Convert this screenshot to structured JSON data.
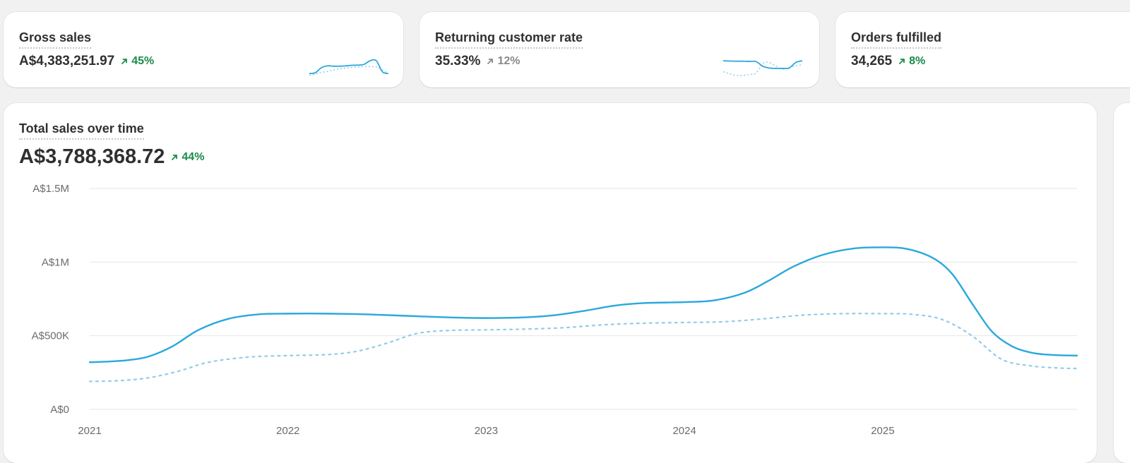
{
  "metrics": [
    {
      "title": "Gross sales",
      "value": "A$4,383,251.97",
      "delta": "45%",
      "trend": "up",
      "sparkline": {
        "current": [
          0.3,
          0.35,
          0.62,
          0.72,
          0.7,
          0.7,
          0.72,
          0.75,
          0.76,
          0.8,
          1.0,
          1.0,
          0.4,
          0.3
        ],
        "previous": [
          0.2,
          0.28,
          0.35,
          0.42,
          0.5,
          0.56,
          0.6,
          0.64,
          0.66,
          0.68,
          0.68,
          0.66,
          0.5,
          0.3
        ]
      }
    },
    {
      "title": "Returning customer rate",
      "value": "35.33%",
      "delta": "12%",
      "trend": "neutral",
      "sparkline": {
        "current": [
          1.0,
          0.98,
          0.97,
          0.97,
          0.96,
          0.95,
          0.7,
          0.6,
          0.58,
          0.58,
          0.6,
          0.9,
          1.0
        ],
        "previous": [
          0.4,
          0.28,
          0.2,
          0.2,
          0.25,
          0.32,
          0.85,
          0.9,
          0.7,
          0.55,
          0.62,
          0.72,
          0.78
        ]
      }
    },
    {
      "title": "Orders fulfilled",
      "value": "34,265",
      "delta": "8%",
      "trend": "up",
      "sparkline": null
    }
  ],
  "main": {
    "title": "Total sales over time",
    "value": "A$3,788,368.72",
    "delta": "44%",
    "trend": "up"
  },
  "colors": {
    "line": "#2aa8dc",
    "line_prev": "#93cbe8",
    "up": "#1a8a4a",
    "neutral": "#8a8a8a",
    "grid": "#e6e6e6"
  },
  "chart_data": {
    "type": "line",
    "x_ticks": [
      "2021",
      "2022",
      "2023",
      "2024",
      "2025"
    ],
    "x_range": [
      2021,
      2025.98
    ],
    "y_ticks": [
      "A$0",
      "A$500K",
      "A$1M",
      "A$1.5M"
    ],
    "y_tick_values": [
      0,
      500000,
      1000000,
      1500000
    ],
    "ylim": [
      0,
      1500000
    ],
    "grid": true,
    "series": [
      {
        "style": "solid",
        "points": [
          [
            2021.0,
            320000
          ],
          [
            2021.1,
            325000
          ],
          [
            2021.2,
            335000
          ],
          [
            2021.3,
            360000
          ],
          [
            2021.42,
            430000
          ],
          [
            2021.55,
            540000
          ],
          [
            2021.7,
            615000
          ],
          [
            2021.85,
            645000
          ],
          [
            2022.0,
            650000
          ],
          [
            2022.2,
            650000
          ],
          [
            2022.4,
            645000
          ],
          [
            2022.6,
            635000
          ],
          [
            2022.8,
            625000
          ],
          [
            2023.0,
            620000
          ],
          [
            2023.2,
            625000
          ],
          [
            2023.35,
            640000
          ],
          [
            2023.5,
            670000
          ],
          [
            2023.65,
            705000
          ],
          [
            2023.8,
            722000
          ],
          [
            2024.0,
            728000
          ],
          [
            2024.15,
            740000
          ],
          [
            2024.3,
            790000
          ],
          [
            2024.42,
            870000
          ],
          [
            2024.55,
            970000
          ],
          [
            2024.7,
            1050000
          ],
          [
            2024.85,
            1092000
          ],
          [
            2025.0,
            1100000
          ],
          [
            2025.12,
            1090000
          ],
          [
            2025.25,
            1030000
          ],
          [
            2025.35,
            920000
          ],
          [
            2025.45,
            720000
          ],
          [
            2025.55,
            530000
          ],
          [
            2025.65,
            430000
          ],
          [
            2025.75,
            385000
          ],
          [
            2025.85,
            370000
          ],
          [
            2025.98,
            365000
          ]
        ]
      },
      {
        "style": "dashed",
        "points": [
          [
            2021.0,
            190000
          ],
          [
            2021.15,
            195000
          ],
          [
            2021.3,
            215000
          ],
          [
            2021.45,
            260000
          ],
          [
            2021.6,
            320000
          ],
          [
            2021.8,
            355000
          ],
          [
            2022.0,
            365000
          ],
          [
            2022.2,
            372000
          ],
          [
            2022.35,
            395000
          ],
          [
            2022.5,
            450000
          ],
          [
            2022.65,
            515000
          ],
          [
            2022.8,
            535000
          ],
          [
            2023.0,
            540000
          ],
          [
            2023.2,
            545000
          ],
          [
            2023.4,
            555000
          ],
          [
            2023.6,
            575000
          ],
          [
            2023.8,
            585000
          ],
          [
            2024.0,
            590000
          ],
          [
            2024.2,
            595000
          ],
          [
            2024.4,
            615000
          ],
          [
            2024.6,
            640000
          ],
          [
            2024.8,
            650000
          ],
          [
            2025.0,
            650000
          ],
          [
            2025.15,
            645000
          ],
          [
            2025.3,
            610000
          ],
          [
            2025.45,
            500000
          ],
          [
            2025.6,
            340000
          ],
          [
            2025.75,
            295000
          ],
          [
            2025.9,
            280000
          ],
          [
            2025.98,
            278000
          ]
        ]
      }
    ]
  }
}
